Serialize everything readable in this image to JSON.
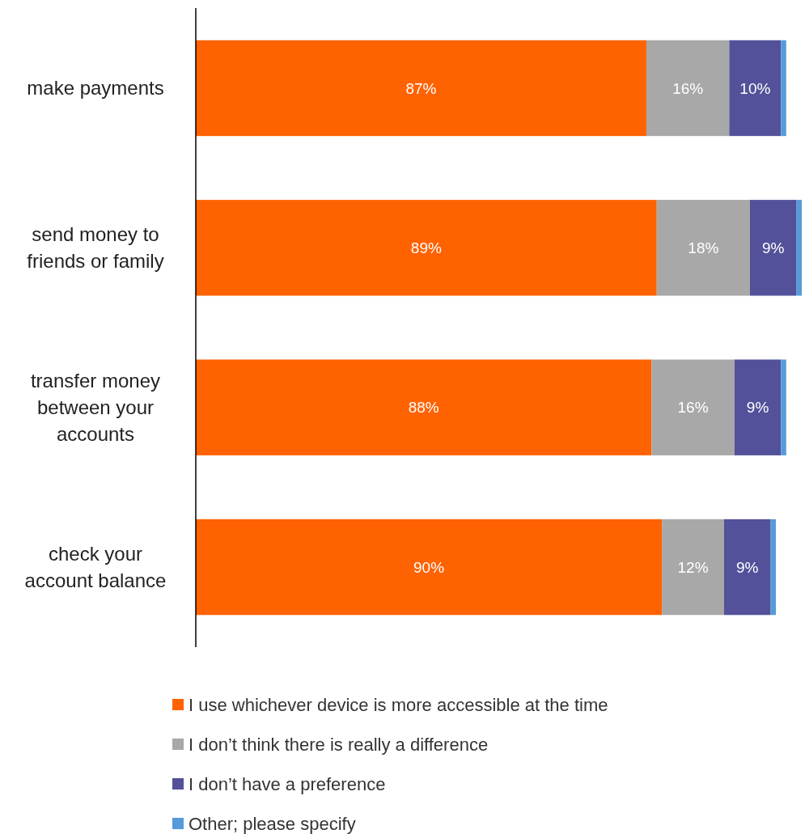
{
  "chart_data": {
    "type": "bar",
    "orientation": "horizontal",
    "stacked": true,
    "legend": "bottom",
    "categories": [
      "make payments",
      "send money to friends or family",
      "transfer money between your accounts",
      "check your account balance"
    ],
    "series": [
      {
        "name": "I use whichever device is more accessible at the time",
        "color": "#ff6200",
        "values": [
          87,
          89,
          88,
          90
        ],
        "value_labels": [
          "87%",
          "89%",
          "88%",
          "90%"
        ]
      },
      {
        "name": "I don’t think there is really a difference",
        "color": "#a8a8a8",
        "values": [
          16,
          18,
          16,
          12
        ],
        "value_labels": [
          "16%",
          "18%",
          "16%",
          "12%"
        ]
      },
      {
        "name": "I don’t have a preference",
        "color": "#525199",
        "values": [
          10,
          9,
          9,
          9
        ],
        "value_labels": [
          "10%",
          "9%",
          "9%",
          "9%"
        ]
      },
      {
        "name": "Other; please specify",
        "color": "#559bd9",
        "values": [
          1,
          1,
          1,
          1
        ]
      }
    ]
  }
}
